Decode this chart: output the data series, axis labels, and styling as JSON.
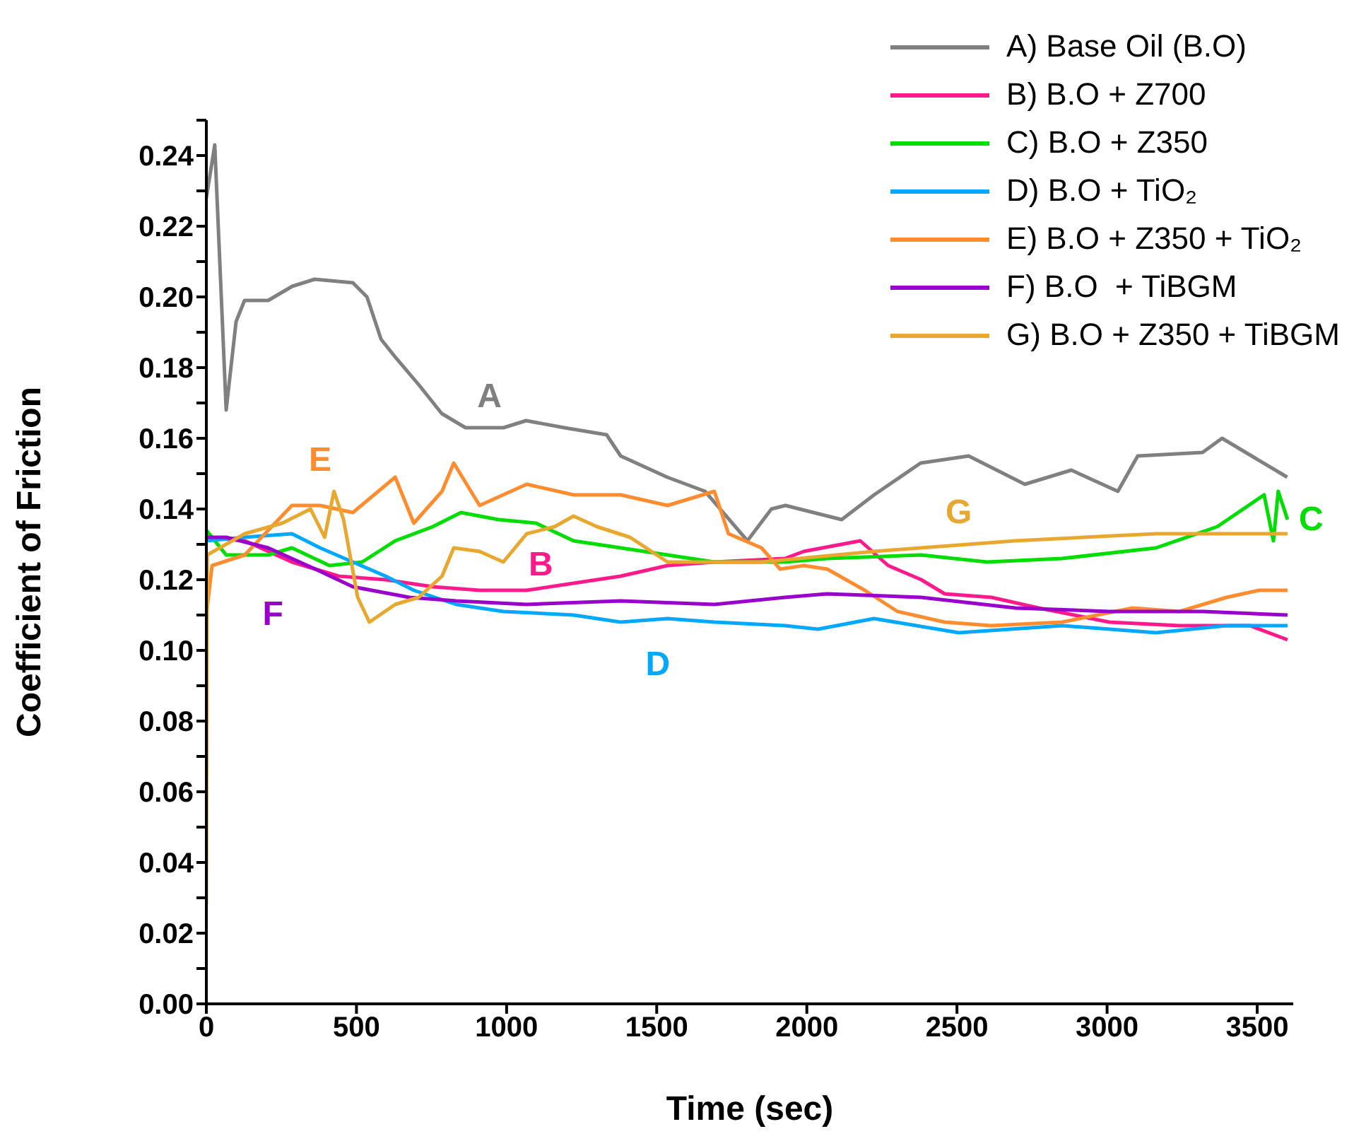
{
  "chart_data": {
    "type": "line",
    "xlabel": "Time (sec)",
    "ylabel": "Coefficient of Friction",
    "xlim": [
      0,
      3620
    ],
    "xticks": [
      0,
      500,
      1000,
      1500,
      2000,
      2500,
      3000,
      3500
    ],
    "ylim": [
      0,
      0.25
    ],
    "yticks": [
      {
        "value": 0,
        "label": "0.00"
      },
      {
        "value": 0.01,
        "label": null
      },
      {
        "value": 0.02,
        "label": "0.02"
      },
      {
        "value": 0.03,
        "label": null
      },
      {
        "value": 0.04,
        "label": "0.04"
      },
      {
        "value": 0.05,
        "label": null
      },
      {
        "value": 0.06,
        "label": "0.06"
      },
      {
        "value": 0.07,
        "label": null
      },
      {
        "value": 0.08,
        "label": "0.08"
      },
      {
        "value": 0.09,
        "label": null
      },
      {
        "value": 0.1,
        "label": "0.10"
      },
      {
        "value": 0.11,
        "label": null
      },
      {
        "value": 0.12,
        "label": "0.12"
      },
      {
        "value": 0.13,
        "label": null
      },
      {
        "value": 0.14,
        "label": "0.14"
      },
      {
        "value": 0.15,
        "label": null
      },
      {
        "value": 0.16,
        "label": "0.16"
      },
      {
        "value": 0.17,
        "label": null
      },
      {
        "value": 0.18,
        "label": "0.18"
      },
      {
        "value": 0.19,
        "label": null
      },
      {
        "value": 0.2,
        "label": "0.20"
      },
      {
        "value": 0.21,
        "label": null
      },
      {
        "value": 0.22,
        "label": "0.22"
      },
      {
        "value": 0.23,
        "label": null
      },
      {
        "value": 0.24,
        "label": "0.24"
      },
      {
        "value": 0.25,
        "label": null
      }
    ],
    "grid": false,
    "legend": "top right",
    "marker": "none",
    "line_style": "solid",
    "series": [
      {
        "name": "A) Base Oil (B.O)",
        "color": "#808080",
        "x": [
          0,
          28,
          66,
          99,
          127,
          206,
          286,
          361,
          488,
          535,
          582,
          629,
          709,
          784,
          863,
          990,
          1065,
          1192,
          1333,
          1380,
          1535,
          1661,
          1802,
          1882,
          1929,
          2069,
          2116,
          2224,
          2379,
          2539,
          2726,
          2881,
          3036,
          3102,
          3318,
          3383,
          3600
        ],
        "values": [
          0.228,
          0.243,
          0.168,
          0.193,
          0.199,
          0.199,
          0.203,
          0.205,
          0.204,
          0.2,
          0.188,
          0.183,
          0.175,
          0.167,
          0.163,
          0.163,
          0.165,
          0.163,
          0.161,
          0.155,
          0.149,
          0.145,
          0.131,
          0.14,
          0.141,
          0.138,
          0.137,
          0.144,
          0.153,
          0.155,
          0.147,
          0.151,
          0.145,
          0.155,
          0.156,
          0.16,
          0.149
        ]
      },
      {
        "name": "B) B.O + Z700",
        "color": "#ff1a8c",
        "x": [
          0,
          128,
          285,
          441,
          597,
          754,
          910,
          1067,
          1223,
          1380,
          1536,
          1692,
          1927,
          1990,
          2178,
          2271,
          2381,
          2459,
          2615,
          2772,
          3007,
          3241,
          3476,
          3601
        ],
        "values": [
          0.132,
          0.131,
          0.125,
          0.121,
          0.12,
          0.118,
          0.117,
          0.117,
          0.119,
          0.121,
          0.124,
          0.125,
          0.126,
          0.128,
          0.131,
          0.124,
          0.12,
          0.116,
          0.115,
          0.112,
          0.108,
          0.107,
          0.107,
          0.103
        ]
      },
      {
        "name": "C) B.O + Z350",
        "color": "#00dd00",
        "x": [
          0,
          66,
          206,
          285,
          410,
          519,
          629,
          754,
          848,
          973,
          1098,
          1223,
          1380,
          1536,
          1692,
          1927,
          2068,
          2381,
          2600,
          2850,
          3163,
          3367,
          3523,
          3554,
          3570,
          3601
        ],
        "values": [
          0.134,
          0.127,
          0.127,
          0.129,
          0.124,
          0.125,
          0.131,
          0.135,
          0.139,
          0.137,
          0.136,
          0.131,
          0.129,
          0.127,
          0.125,
          0.125,
          0.126,
          0.127,
          0.125,
          0.126,
          0.129,
          0.135,
          0.144,
          0.131,
          0.145,
          0.137
        ]
      },
      {
        "name": "D) B.O + TiO₂",
        "color": "#00a8ff",
        "x": [
          0,
          128,
          285,
          379,
          488,
          597,
          691,
          832,
          989,
          1223,
          1380,
          1536,
          1692,
          1927,
          2037,
          2224,
          2506,
          2850,
          3163,
          3398,
          3601
        ],
        "values": [
          0.131,
          0.132,
          0.133,
          0.129,
          0.125,
          0.121,
          0.117,
          0.113,
          0.111,
          0.11,
          0.108,
          0.109,
          0.108,
          0.107,
          0.106,
          0.109,
          0.105,
          0.107,
          0.105,
          0.107,
          0.107
        ]
      },
      {
        "name": "E) B.O + Z350 + TiO₂",
        "color": "#ff8c2e",
        "x": [
          0,
          19,
          128,
          285,
          379,
          488,
          629,
          691,
          785,
          824,
          910,
          1067,
          1223,
          1380,
          1536,
          1692,
          1739,
          1849,
          1911,
          1990,
          2068,
          2193,
          2302,
          2459,
          2615,
          2850,
          3085,
          3241,
          3398,
          3507,
          3601
        ],
        "values": [
          0.11,
          0.124,
          0.127,
          0.141,
          0.141,
          0.139,
          0.149,
          0.136,
          0.145,
          0.153,
          0.141,
          0.147,
          0.144,
          0.144,
          0.141,
          0.145,
          0.133,
          0.129,
          0.123,
          0.124,
          0.123,
          0.117,
          0.111,
          0.108,
          0.107,
          0.108,
          0.112,
          0.111,
          0.115,
          0.117,
          0.117
        ]
      },
      {
        "name": "F) B.O  + TiBGM",
        "color": "#9900cc",
        "x": [
          0,
          66,
          206,
          363,
          488,
          676,
          832,
          1067,
          1380,
          1692,
          1927,
          2068,
          2381,
          2694,
          3007,
          3320,
          3601
        ],
        "values": [
          0.132,
          0.132,
          0.129,
          0.123,
          0.118,
          0.115,
          0.114,
          0.113,
          0.114,
          0.113,
          0.115,
          0.116,
          0.115,
          0.112,
          0.111,
          0.111,
          0.11
        ]
      },
      {
        "name": "G) B.O + Z350 + TiBGM",
        "color": "#e8a830",
        "x": [
          0,
          3,
          128,
          253,
          347,
          394,
          425,
          457,
          504,
          543,
          629,
          707,
          785,
          824,
          910,
          989,
          1067,
          1160,
          1223,
          1301,
          1411,
          1536,
          1692,
          1849,
          2224,
          2694,
          3163,
          3601
        ],
        "values": [
          0.028,
          0.127,
          0.133,
          0.136,
          0.14,
          0.132,
          0.145,
          0.137,
          0.115,
          0.108,
          0.113,
          0.115,
          0.121,
          0.129,
          0.128,
          0.125,
          0.133,
          0.135,
          0.138,
          0.135,
          0.132,
          0.125,
          0.125,
          0.125,
          0.128,
          0.131,
          0.133,
          0.133
        ]
      }
    ],
    "annotations": [
      {
        "text": "A",
        "x": 990,
        "y": 0.163
      },
      {
        "text": "B",
        "x": 1067,
        "y": 0.117
      },
      {
        "text": "C",
        "x": 3601,
        "y": 0.137
      },
      {
        "text": "D",
        "x": 1692,
        "y": 0.108
      },
      {
        "text": "E",
        "x": 379,
        "y": 0.141
      },
      {
        "text": "F",
        "x": 363,
        "y": 0.123
      },
      {
        "text": "G",
        "x": 2694,
        "y": 0.131
      }
    ]
  }
}
